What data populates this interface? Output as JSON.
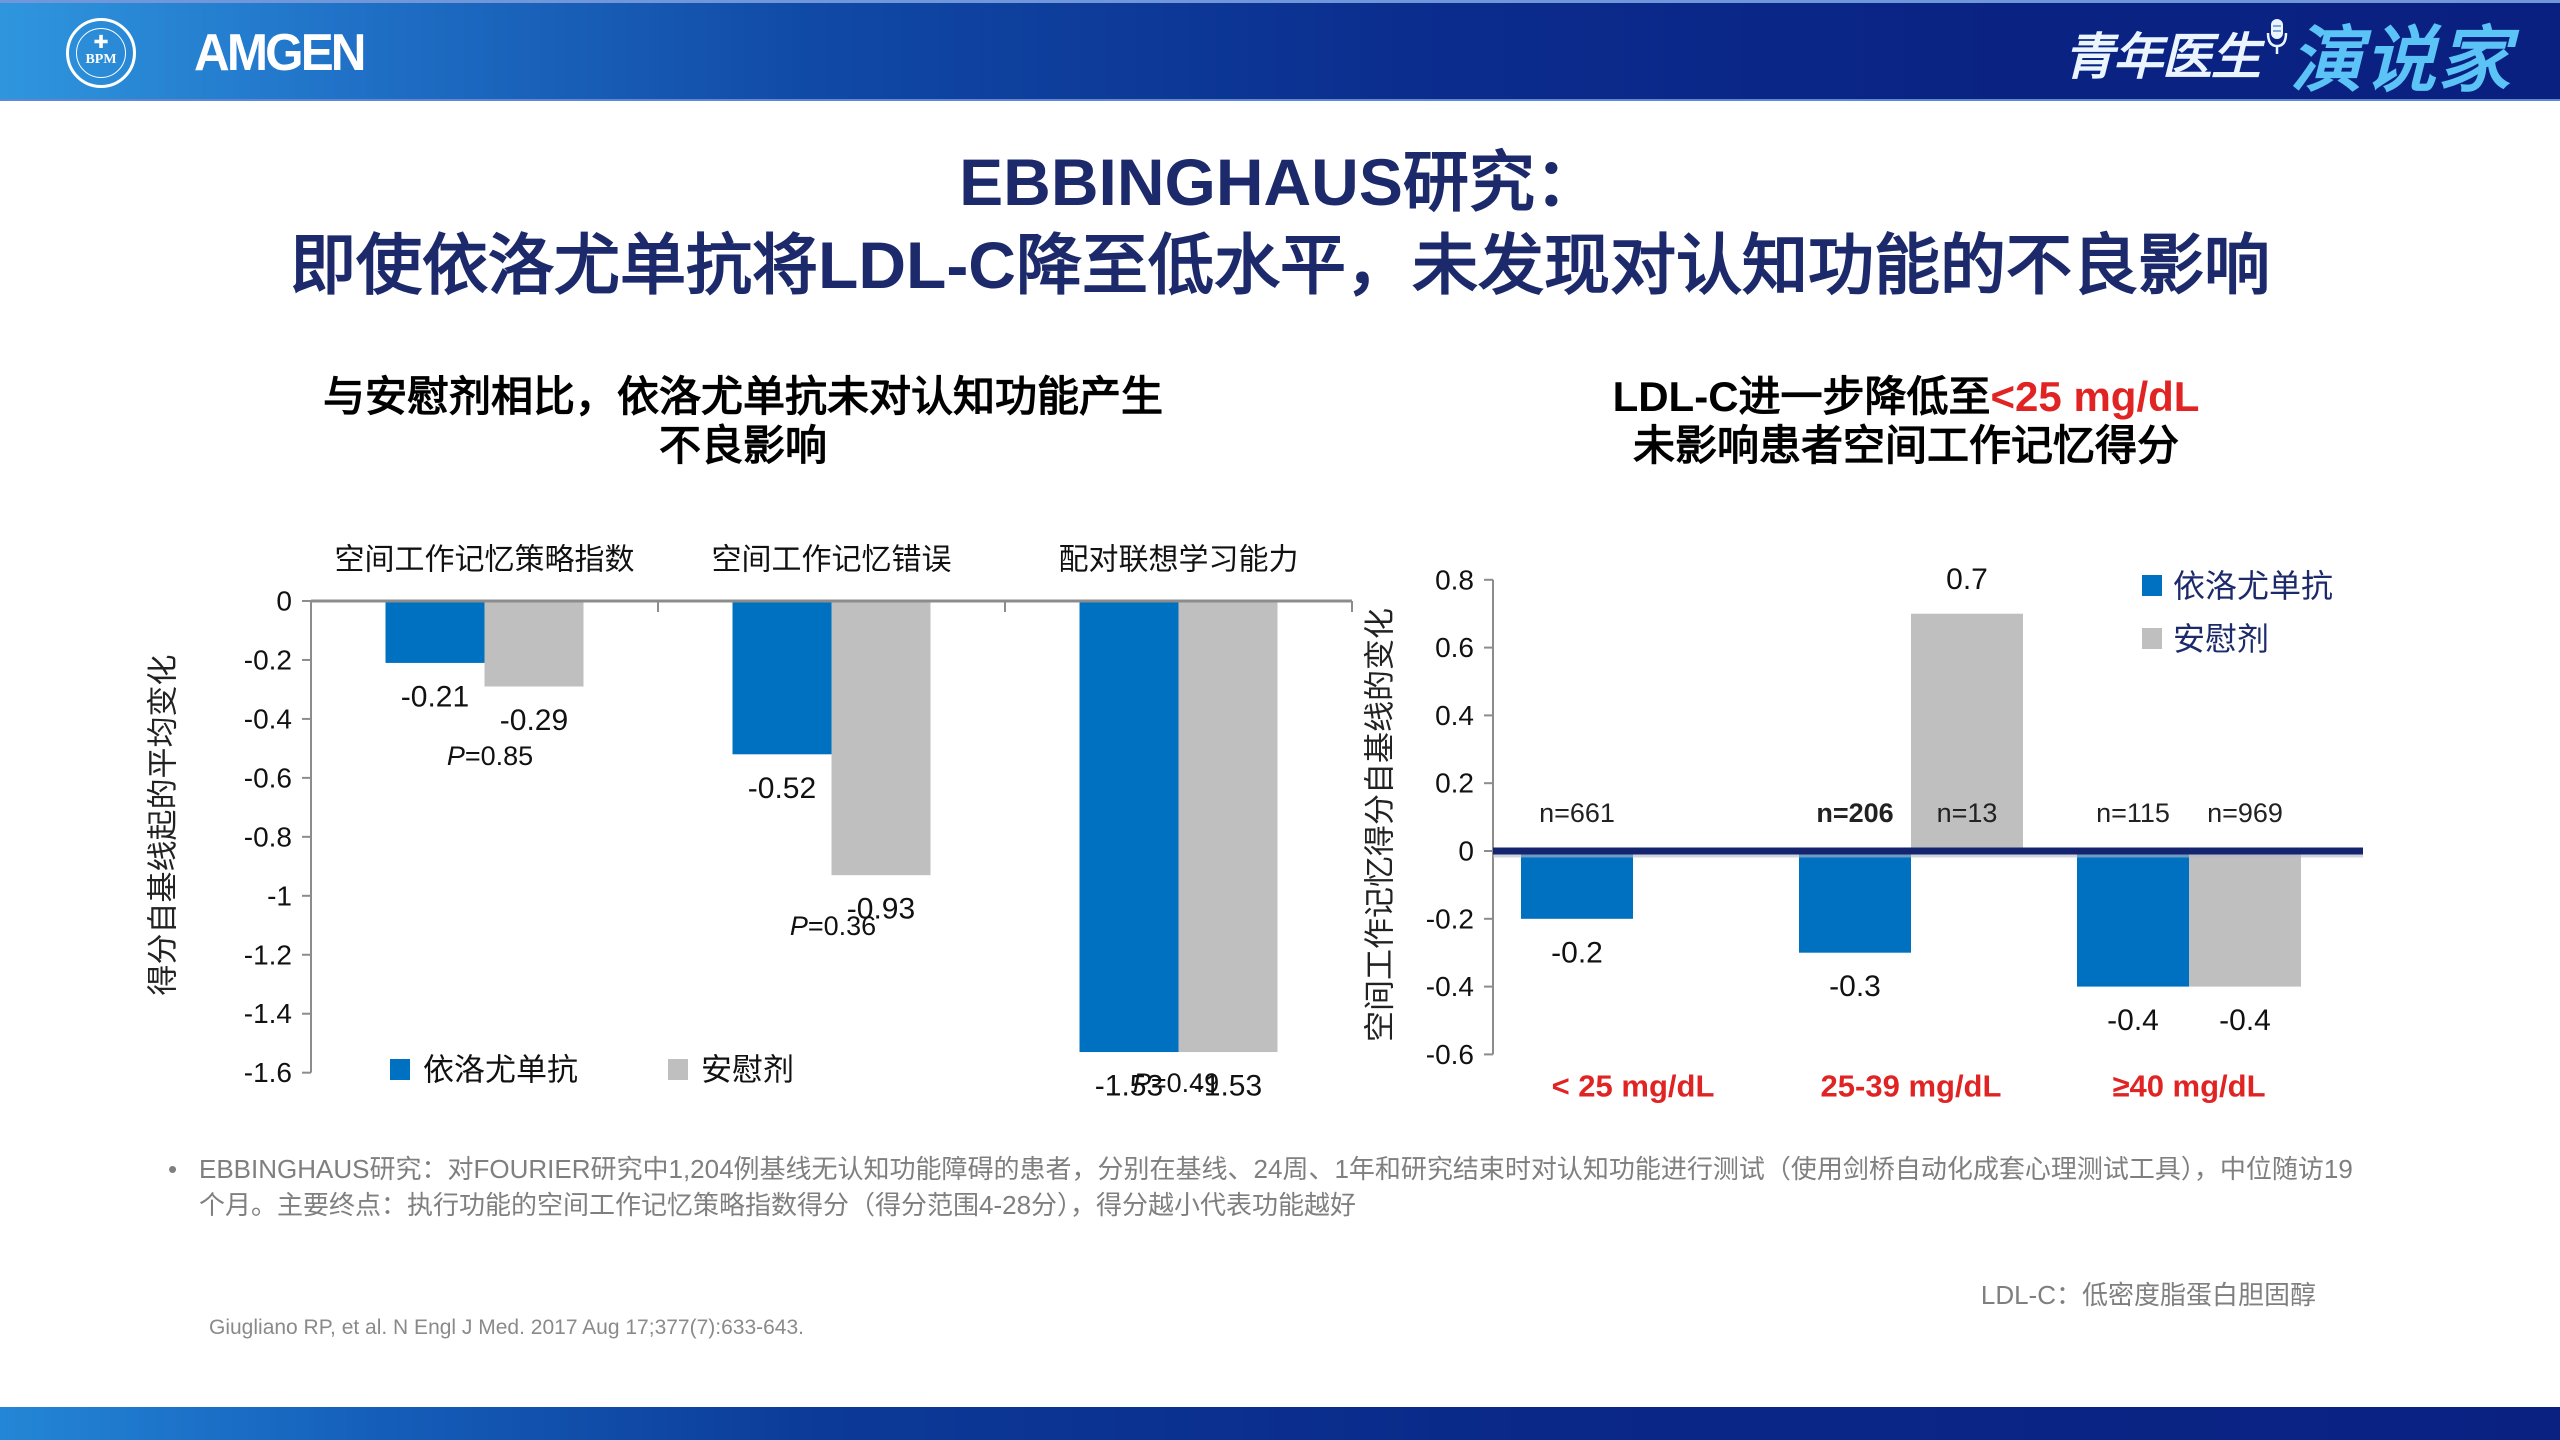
{
  "header": {
    "logo_left_text": "BPM",
    "brand": "AMGEN",
    "event_brand_part1": "青年医生",
    "event_brand_part2": "演说家"
  },
  "title": {
    "line1": "EBBINGHAUS研究：",
    "line2": "即使依洛尤单抗将LDL-C降至低水平，未发现对认知功能的不良影响"
  },
  "colors": {
    "title_navy": "#1c2a6b",
    "evolocumab_bar": "#0070c0",
    "placebo_bar": "#bfbfbf",
    "zero_line": "#14246e",
    "highlight_red": "#e02424",
    "footnote_gray": "#7f7f7f",
    "event_brand_accent": "#5cc3f7"
  },
  "chart_data": [
    {
      "type": "bar",
      "title_lines": [
        {
          "text": "与安慰剂相比，依洛尤单抗未对认知功能产生"
        },
        {
          "text": "不良影响"
        }
      ],
      "categories": [
        "空间工作记忆策略指数",
        "空间工作记忆错误",
        "配对联想学习能力"
      ],
      "series": [
        {
          "name": "依洛尤单抗",
          "color": "#0070c0",
          "values": [
            -0.21,
            -0.52,
            -1.53
          ],
          "labels": [
            "-0.21",
            "-0.52",
            "-1.53"
          ]
        },
        {
          "name": "安慰剂",
          "color": "#bfbfbf",
          "values": [
            -0.29,
            -0.93,
            -1.53
          ],
          "labels": [
            "-0.29",
            "-0.93",
            "-1.53"
          ]
        }
      ],
      "p_values": [
        {
          "symbol": "P",
          "value": "=0.85"
        },
        {
          "symbol": "P",
          "value": "=0.36"
        },
        {
          "symbol": "P",
          "value": "=0.49"
        }
      ],
      "xlabel": "",
      "ylabel": "得分自基线起的平均变化",
      "ylim": [
        -1.6,
        0
      ],
      "yticks": [
        0,
        -0.2,
        -0.4,
        -0.6,
        -0.8,
        -1,
        -1.2,
        -1.4,
        -1.6
      ],
      "ytick_labels": [
        "0",
        "-0.2",
        "-0.4",
        "-0.6",
        "-0.8",
        "-1",
        "-1.2",
        "-1.4",
        "-1.6"
      ],
      "category_axis_position": "top",
      "legend": "bottom-left",
      "grid": false
    },
    {
      "type": "bar",
      "title_lines": [
        {
          "text": "LDL-C进一步降低至",
          "highlight": "<25 mg/dL"
        },
        {
          "text": "未影响患者空间工作记忆得分"
        }
      ],
      "categories": [
        "< 25 mg/dL",
        "25-39 mg/dL",
        "≥40 mg/dL"
      ],
      "series": [
        {
          "name": "依洛尤单抗",
          "color": "#0070c0",
          "values": [
            -0.2,
            -0.3,
            -0.4
          ],
          "labels": [
            "-0.2",
            "-0.3",
            "-0.4"
          ],
          "n": [
            "n=661",
            "n=206",
            "n=115"
          ],
          "n_bold": [
            false,
            true,
            false
          ]
        },
        {
          "name": "安慰剂",
          "color": "#bfbfbf",
          "values": [
            null,
            0.7,
            -0.4
          ],
          "labels": [
            null,
            "0.7",
            "-0.4"
          ],
          "n": [
            null,
            "n=13",
            "n=969"
          ],
          "n_bold": [
            false,
            false,
            false
          ]
        }
      ],
      "xlabel": "",
      "ylabel": "空间工作记忆得分自基线的变化",
      "ylim": [
        -0.6,
        0.8
      ],
      "yticks": [
        0.8,
        0.6,
        0.4,
        0.2,
        0,
        -0.2,
        -0.4,
        -0.6
      ],
      "ytick_labels": [
        "0.8",
        "0.6",
        "0.4",
        "0.2",
        "0",
        "-0.2",
        "-0.4",
        "-0.6"
      ],
      "category_axis_position": "bottom",
      "legend": "top-right",
      "grid": false
    }
  ],
  "footnotes": {
    "bullet": "•",
    "study_note": "EBBINGHAUS研究：对FOURIER研究中1,204例基线无认知功能障碍的患者，分别在基线、24周、1年和研究结束时对认知功能进行测试（使用剑桥自动化成套心理测试工具），中位随访19个月。主要终点：执行功能的空间工作记忆策略指数得分（得分范围4-28分），得分越小代表功能越好",
    "abbreviation": "LDL-C：低密度脂蛋白胆固醇",
    "citation": "Giugliano RP, et al. N Engl J Med. 2017 Aug 17;377(7):633-643."
  }
}
